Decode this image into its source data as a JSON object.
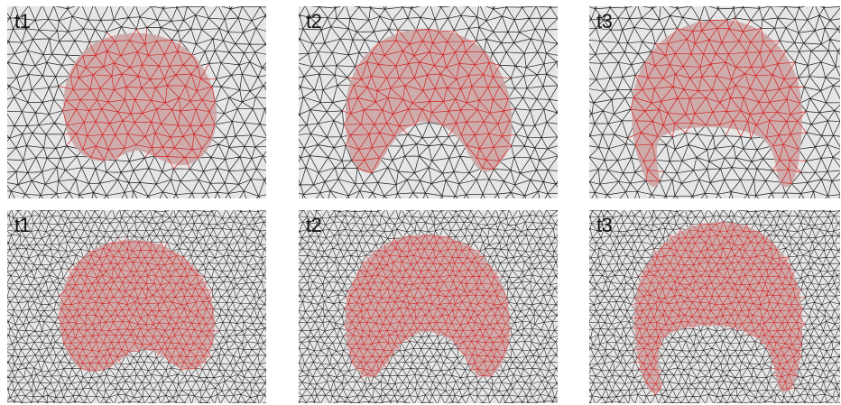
{
  "figure": {
    "panels": [
      {
        "label": "t1",
        "mesh": "coarse",
        "stage": 1
      },
      {
        "label": "t2",
        "mesh": "coarse",
        "stage": 2
      },
      {
        "label": "t3",
        "mesh": "coarse",
        "stage": 3
      },
      {
        "label": "t1",
        "mesh": "fine",
        "stage": 1
      },
      {
        "label": "t2",
        "mesh": "fine",
        "stage": 2
      },
      {
        "label": "t3",
        "mesh": "fine",
        "stage": 3
      }
    ],
    "colors": {
      "background": "#e6e6e6",
      "mesh_edges": "#1a1a1a",
      "shape_fill": "#c9a1a1",
      "shape_edges": "#d42020"
    }
  }
}
